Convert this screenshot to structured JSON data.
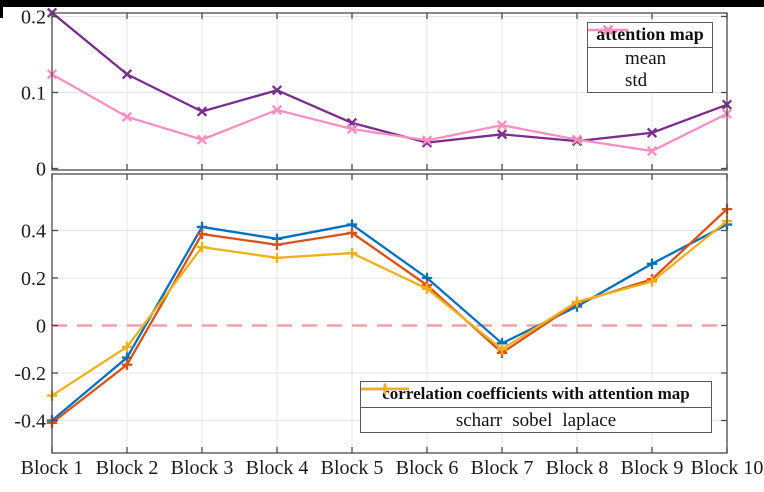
{
  "window": {
    "top_bar_color": "#000000"
  },
  "figure": {
    "background": "#ffffff",
    "axis_color": "#4a4a4a",
    "grid_color": "#e4e4e7",
    "text_color": "#1c1c1c",
    "x_axis_labels": [
      "Block 1",
      "Block 2",
      "Block 3",
      "Block 4",
      "Block 5",
      "Block 6",
      "Block 7",
      "Block 8",
      "Block 9",
      "Block 10"
    ]
  },
  "chart_data": [
    {
      "type": "line",
      "panel": "top",
      "legend_title": "attention map",
      "legend_position": "top-right",
      "categories": [
        "Block 1",
        "Block 2",
        "Block 3",
        "Block 4",
        "Block 5",
        "Block 6",
        "Block 7",
        "Block 8",
        "Block 9",
        "Block 10"
      ],
      "ytick_labels": [
        "0",
        "0.1",
        "0.2"
      ],
      "yticks": [
        0,
        0.1,
        0.2
      ],
      "ylim": [
        0,
        0.205
      ],
      "grid": true,
      "series": [
        {
          "name": "mean",
          "color": "#7A2E8E",
          "marker": "x",
          "values": [
            0.205,
            0.124,
            0.075,
            0.103,
            0.06,
            0.034,
            0.045,
            0.036,
            0.047,
            0.084
          ]
        },
        {
          "name": "std",
          "color": "#F78FC3",
          "marker": "x",
          "values": [
            0.124,
            0.068,
            0.038,
            0.077,
            0.052,
            0.037,
            0.057,
            0.038,
            0.023,
            0.072
          ]
        }
      ]
    },
    {
      "type": "line",
      "panel": "bottom",
      "legend_title": "correlation coefficients with attention map",
      "legend_position": "bottom-right",
      "categories": [
        "Block 1",
        "Block 2",
        "Block 3",
        "Block 4",
        "Block 5",
        "Block 6",
        "Block 7",
        "Block 8",
        "Block 9",
        "Block 10"
      ],
      "ytick_labels": [
        "-0.4",
        "-0.2",
        "0",
        "0.2",
        "0.4"
      ],
      "yticks": [
        -0.4,
        -0.2,
        0,
        0.2,
        0.4
      ],
      "ylim": [
        -0.54,
        0.64
      ],
      "grid": true,
      "zero_line": {
        "style": "dashed",
        "color": "#F2A0A6",
        "value": 0
      },
      "series": [
        {
          "name": "scharr",
          "color": "#0072BD",
          "marker": "+",
          "values": [
            -0.4,
            -0.135,
            0.415,
            0.365,
            0.425,
            0.2,
            -0.075,
            0.08,
            0.26,
            0.425
          ]
        },
        {
          "name": "sobel",
          "color": "#D95319",
          "marker": "+",
          "values": [
            -0.41,
            -0.165,
            0.385,
            0.34,
            0.39,
            0.17,
            -0.115,
            0.095,
            0.195,
            0.49
          ]
        },
        {
          "name": "laplace",
          "color": "#EDB120",
          "marker": "+",
          "values": [
            -0.295,
            -0.09,
            0.33,
            0.285,
            0.305,
            0.155,
            -0.1,
            0.1,
            0.185,
            0.44
          ]
        }
      ]
    }
  ]
}
